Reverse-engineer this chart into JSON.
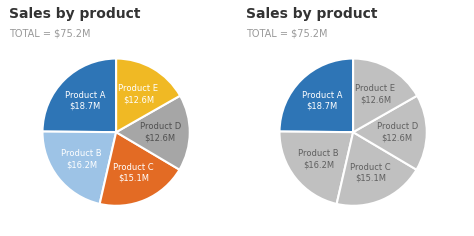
{
  "title": "Sales by product",
  "subtitle": "TOTAL = $75.2M",
  "products": [
    "Product A",
    "Product B",
    "Product C",
    "Product D",
    "Product E"
  ],
  "values": [
    18.7,
    16.2,
    15.1,
    12.6,
    12.6
  ],
  "colors_left": [
    "#2E75B6",
    "#9DC3E6",
    "#E36B24",
    "#A6A6A6",
    "#F0B924"
  ],
  "colors_right_highlight": "#2E75B6",
  "colors_right_gray": "#C0C0C0",
  "highlight_index": 0,
  "title_fontsize": 10,
  "subtitle_fontsize": 7,
  "label_fontsize": 6,
  "background_color": "#FFFFFF",
  "startangle": 90,
  "text_colors_left": [
    "#FFFFFF",
    "#FFFFFF",
    "#FFFFFF",
    "#505050",
    "#FFFFFF"
  ],
  "text_colors_right_highlight": "#FFFFFF",
  "text_colors_right_gray": "#606060"
}
